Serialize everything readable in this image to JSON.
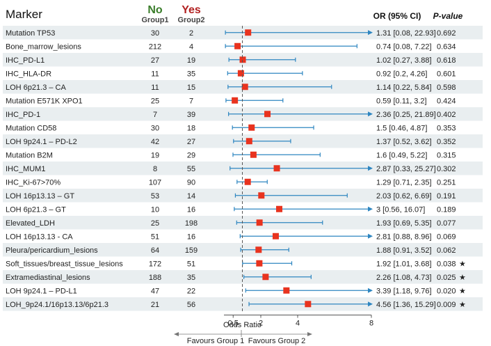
{
  "chart_data": {
    "type": "forest",
    "headers": {
      "marker": "Marker",
      "group1_top": "No",
      "group1_sub": "Group1",
      "group2_top": "Yes",
      "group2_sub": "Group2",
      "or_ci": "OR (95% CI)",
      "pvalue": "P-value"
    },
    "colors": {
      "group1": "#3a7d2a",
      "group2": "#b22222",
      "point": "#e8331f",
      "ci_line": "#2e86c1",
      "row_shade": "#e9eef0"
    },
    "rows": [
      {
        "marker": "Mutation TP53",
        "n1": "30",
        "n2": "2",
        "or": 1.31,
        "lo": 0.08,
        "hi": 22.93,
        "label": "1.31 [0.08, 22.93]",
        "p": "0.692",
        "sig": ""
      },
      {
        "marker": "Bone_marrow_lesions",
        "n1": "212",
        "n2": "4",
        "or": 0.74,
        "lo": 0.08,
        "hi": 7.22,
        "label": "0.74 [0.08, 7.22]",
        "p": "0.634",
        "sig": ""
      },
      {
        "marker": "IHC_PD-L1",
        "n1": "27",
        "n2": "19",
        "or": 1.02,
        "lo": 0.27,
        "hi": 3.88,
        "label": "1.02 [0.27, 3.88]",
        "p": "0.618",
        "sig": ""
      },
      {
        "marker": "IHC_HLA-DR",
        "n1": "11",
        "n2": "35",
        "or": 0.92,
        "lo": 0.2,
        "hi": 4.26,
        "label": "0.92 [0.2, 4.26]",
        "p": "0.601",
        "sig": ""
      },
      {
        "marker": "LOH 6p21.3 – CA",
        "n1": "11",
        "n2": "15",
        "or": 1.14,
        "lo": 0.22,
        "hi": 5.84,
        "label": "1.14 [0.22, 5.84]",
        "p": "0.598",
        "sig": ""
      },
      {
        "marker": "Mutation E571K XPO1",
        "n1": "25",
        "n2": "7",
        "or": 0.59,
        "lo": 0.11,
        "hi": 3.2,
        "label": "0.59 [0.11, 3.2]",
        "p": "0.424",
        "sig": ""
      },
      {
        "marker": "IHC_PD-1",
        "n1": "7",
        "n2": "39",
        "or": 2.36,
        "lo": 0.25,
        "hi": 21.89,
        "label": "2.36 [0.25, 21.89]",
        "p": "0.402",
        "sig": ""
      },
      {
        "marker": "Mutation CD58",
        "n1": "30",
        "n2": "18",
        "or": 1.5,
        "lo": 0.46,
        "hi": 4.87,
        "label": "1.5 [0.46, 4.87]",
        "p": "0.353",
        "sig": ""
      },
      {
        "marker": "LOH 9p24.1 – PD-L2",
        "n1": "42",
        "n2": "27",
        "or": 1.37,
        "lo": 0.52,
        "hi": 3.62,
        "label": "1.37 [0.52, 3.62]",
        "p": "0.352",
        "sig": ""
      },
      {
        "marker": "Mutation B2M",
        "n1": "19",
        "n2": "29",
        "or": 1.6,
        "lo": 0.49,
        "hi": 5.22,
        "label": "1.6 [0.49, 5.22]",
        "p": "0.315",
        "sig": ""
      },
      {
        "marker": "IHC_MUM1",
        "n1": "8",
        "n2": "55",
        "or": 2.87,
        "lo": 0.33,
        "hi": 25.27,
        "label": "2.87 [0.33, 25.27]",
        "p": "0.302",
        "sig": ""
      },
      {
        "marker": "IHC_Ki-67>70%",
        "n1": "107",
        "n2": "90",
        "or": 1.29,
        "lo": 0.71,
        "hi": 2.35,
        "label": "1.29 [0.71, 2.35]",
        "p": "0.251",
        "sig": ""
      },
      {
        "marker": "LOH 16p13.13 – GT",
        "n1": "53",
        "n2": "14",
        "or": 2.03,
        "lo": 0.62,
        "hi": 6.69,
        "label": "2.03 [0.62, 6.69]",
        "p": "0.191",
        "sig": ""
      },
      {
        "marker": "LOH 6p21.3 – GT",
        "n1": "10",
        "n2": "16",
        "or": 3,
        "lo": 0.56,
        "hi": 16.07,
        "label": "3 [0.56, 16.07]",
        "p": "0.189",
        "sig": ""
      },
      {
        "marker": "Elevated_LDH",
        "n1": "25",
        "n2": "198",
        "or": 1.93,
        "lo": 0.69,
        "hi": 5.35,
        "label": "1.93 [0.69, 5.35]",
        "p": "0.077",
        "sig": ""
      },
      {
        "marker": "LOH 16p13.13 - CA",
        "n1": "51",
        "n2": "16",
        "or": 2.81,
        "lo": 0.88,
        "hi": 8.96,
        "label": "2.81 [0.88, 8.96]",
        "p": "0.069",
        "sig": ""
      },
      {
        "marker": "Pleura/pericardium_lesions",
        "n1": "64",
        "n2": "159",
        "or": 1.88,
        "lo": 0.91,
        "hi": 3.52,
        "label": "1.88 [0.91, 3.52]",
        "p": "0.062",
        "sig": ""
      },
      {
        "marker": "Soft_tissues/breast_tissue_lesions",
        "n1": "172",
        "n2": "51",
        "or": 1.92,
        "lo": 1.01,
        "hi": 3.68,
        "label": "1.92 [1.01, 3.68]",
        "p": "0.038",
        "sig": "★"
      },
      {
        "marker": "Extramediastinal_lesions",
        "n1": "188",
        "n2": "35",
        "or": 2.26,
        "lo": 1.08,
        "hi": 4.73,
        "label": "2.26 [1.08, 4.73]",
        "p": "0.025",
        "sig": "★"
      },
      {
        "marker": "LOH 9p24.1 – PD-L1",
        "n1": "47",
        "n2": "22",
        "or": 3.39,
        "lo": 1.18,
        "hi": 9.76,
        "label": "3.39 [1.18, 9.76]",
        "p": "0.020",
        "sig": "★"
      },
      {
        "marker": "LOH_9p24.1/16p13.13/6p21.3",
        "n1": "21",
        "n2": "56",
        "or": 4.56,
        "lo": 1.36,
        "hi": 15.29,
        "label": "4.56 [1.36, 15.29]",
        "p": "0.009",
        "sig": "★"
      }
    ],
    "x_axis": {
      "label": "Odds Ratio",
      "ticks": [
        0.5,
        2,
        4,
        8
      ],
      "tick_labels": [
        "0.5",
        "2",
        "4",
        "8"
      ],
      "range": [
        0,
        8
      ],
      "reference": 1
    },
    "favours": {
      "left": "Favours Group 1",
      "right": "Favours Group 2"
    }
  }
}
